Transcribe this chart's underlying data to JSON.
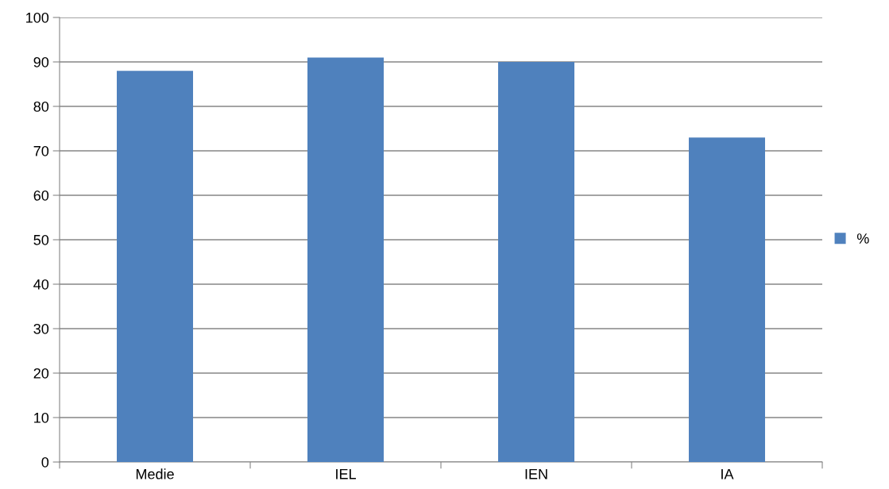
{
  "chart_data": {
    "type": "bar",
    "categories": [
      "Medie",
      "IEL",
      "IEN",
      "IA"
    ],
    "series": [
      {
        "name": "%",
        "color": "#4f81bd",
        "values": [
          88,
          91,
          90,
          73
        ]
      }
    ],
    "ylim": [
      0,
      100
    ],
    "yticks": [
      0,
      10,
      20,
      30,
      40,
      50,
      60,
      70,
      80,
      90,
      100
    ],
    "grid": "y",
    "legend": "right"
  }
}
